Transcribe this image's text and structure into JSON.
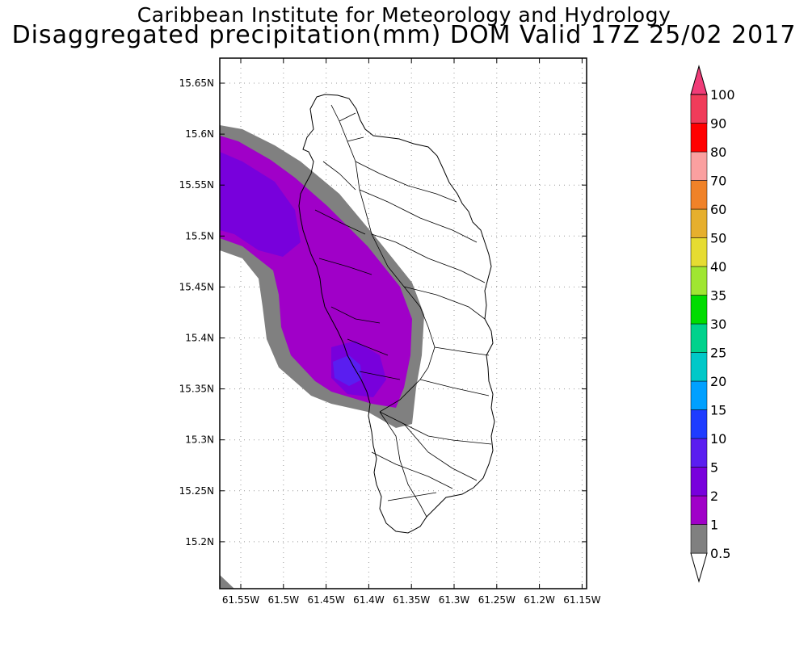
{
  "title_line1": "Caribbean Institute for Meteorology and Hydrology",
  "title_line2": "Disaggregated precipitation(mm) DOM Valid 17Z 25/02 2017",
  "lat_ticks": [
    "15.65N",
    "15.6N",
    "15.55N",
    "15.5N",
    "15.45N",
    "15.4N",
    "15.35N",
    "15.3N",
    "15.25N",
    "15.2N"
  ],
  "lon_ticks": [
    "61.55W",
    "61.5W",
    "61.45W",
    "61.4W",
    "61.35W",
    "61.3W",
    "61.25W",
    "61.2W",
    "61.15W"
  ],
  "colorbar": [
    {
      "label": "0.5",
      "color": "#808080"
    },
    {
      "label": "1",
      "color": "#a000c8"
    },
    {
      "label": "2",
      "color": "#7800dc"
    },
    {
      "label": "5",
      "color": "#5a1ef0"
    },
    {
      "label": "10",
      "color": "#1e3cff"
    },
    {
      "label": "15",
      "color": "#00a0ff"
    },
    {
      "label": "20",
      "color": "#00c8c8"
    },
    {
      "label": "25",
      "color": "#00d28c"
    },
    {
      "label": "30",
      "color": "#00dc00"
    },
    {
      "label": "35",
      "color": "#a0e632"
    },
    {
      "label": "40",
      "color": "#e6dc32"
    },
    {
      "label": "50",
      "color": "#e6af2d"
    },
    {
      "label": "60",
      "color": "#f08228"
    },
    {
      "label": "70",
      "color": "#faa0a0"
    },
    {
      "label": "80",
      "color": "#ff0000"
    },
    {
      "label": "90",
      "color": "#f03c3c"
    },
    {
      "label": "100",
      "color": "#f03c5a"
    }
  ],
  "colorbar_top_color": "#f03c78"
}
